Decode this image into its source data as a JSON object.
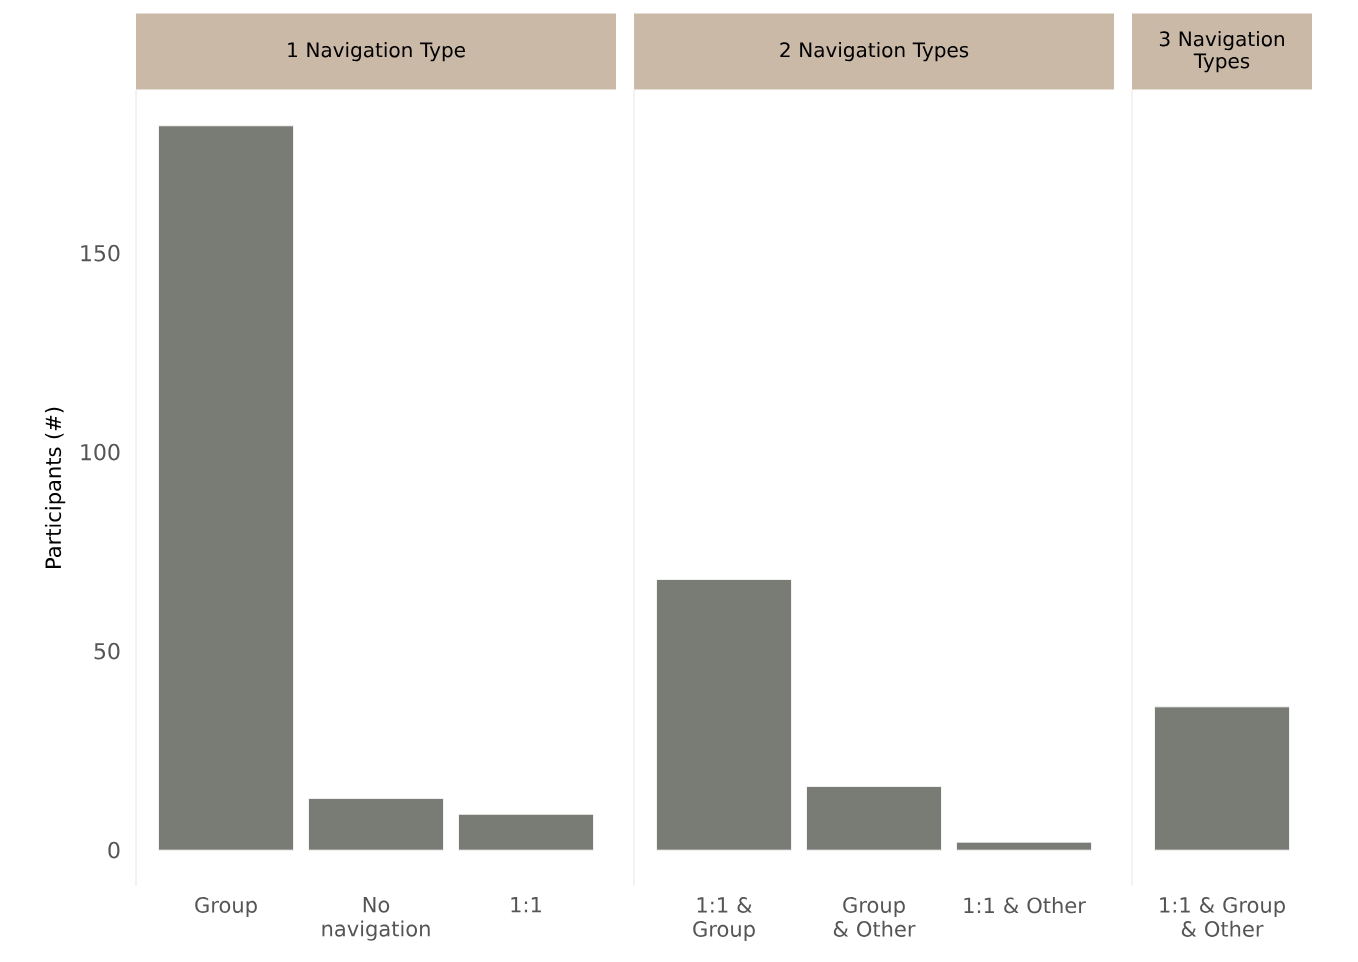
{
  "chart_data": [
    {
      "type": "bar",
      "title": "1 Navigation Type",
      "ylabel": "Participants (#)",
      "categories": [
        "Group",
        "No navigation",
        "1:1"
      ],
      "values": [
        182,
        13,
        9
      ],
      "color": "#787c74",
      "ylim": [
        -9,
        191
      ],
      "yticks": [
        0,
        50,
        100,
        150
      ],
      "grid": false
    },
    {
      "type": "bar",
      "title": "2 Navigation Types",
      "categories": [
        "1:1 & Group",
        "Group & Other",
        "1:1 & Other"
      ],
      "values": [
        68,
        16,
        2
      ],
      "color": "#787c74",
      "ylim": [
        -9,
        191
      ],
      "tick_labels": "x",
      "grid": false
    },
    {
      "type": "bar",
      "title": "3 Navigation Types",
      "categories": [
        "1:1 & Group & Other"
      ],
      "values": [
        36
      ],
      "color": "#787c74",
      "ylim": [
        -9,
        191
      ],
      "tick_labels": "x",
      "grid": false
    }
  ]
}
